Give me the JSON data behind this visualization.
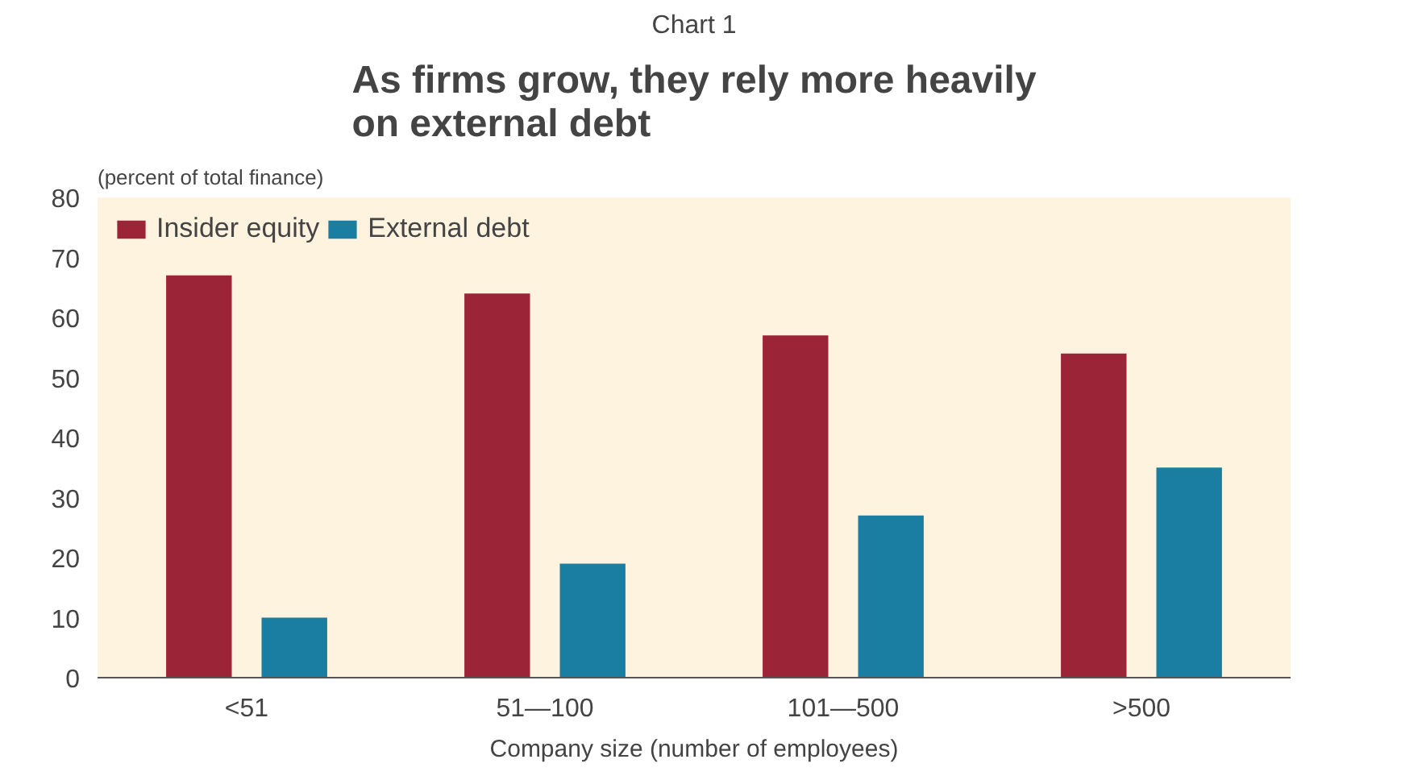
{
  "chart_data": {
    "type": "bar",
    "title": "As firms grow, they rely more heavily\non external debt",
    "annotations": [
      "Chart 1"
    ],
    "ylabel": "(percent of total finance)",
    "xlabel": "Company size (number of employees)",
    "categories": [
      "<51",
      "51—100",
      "101—500",
      ">500"
    ],
    "series": [
      {
        "name": "Insider equity",
        "color": "#9b2437",
        "values": [
          67,
          64,
          57,
          54
        ]
      },
      {
        "name": "External debt",
        "color": "#1a7ea3",
        "values": [
          10,
          19,
          27,
          35
        ]
      }
    ],
    "ylim": [
      0,
      80
    ],
    "yticks": [
      0,
      10,
      20,
      30,
      40,
      50,
      60,
      70,
      80
    ],
    "grid": false,
    "legend": "top left"
  }
}
